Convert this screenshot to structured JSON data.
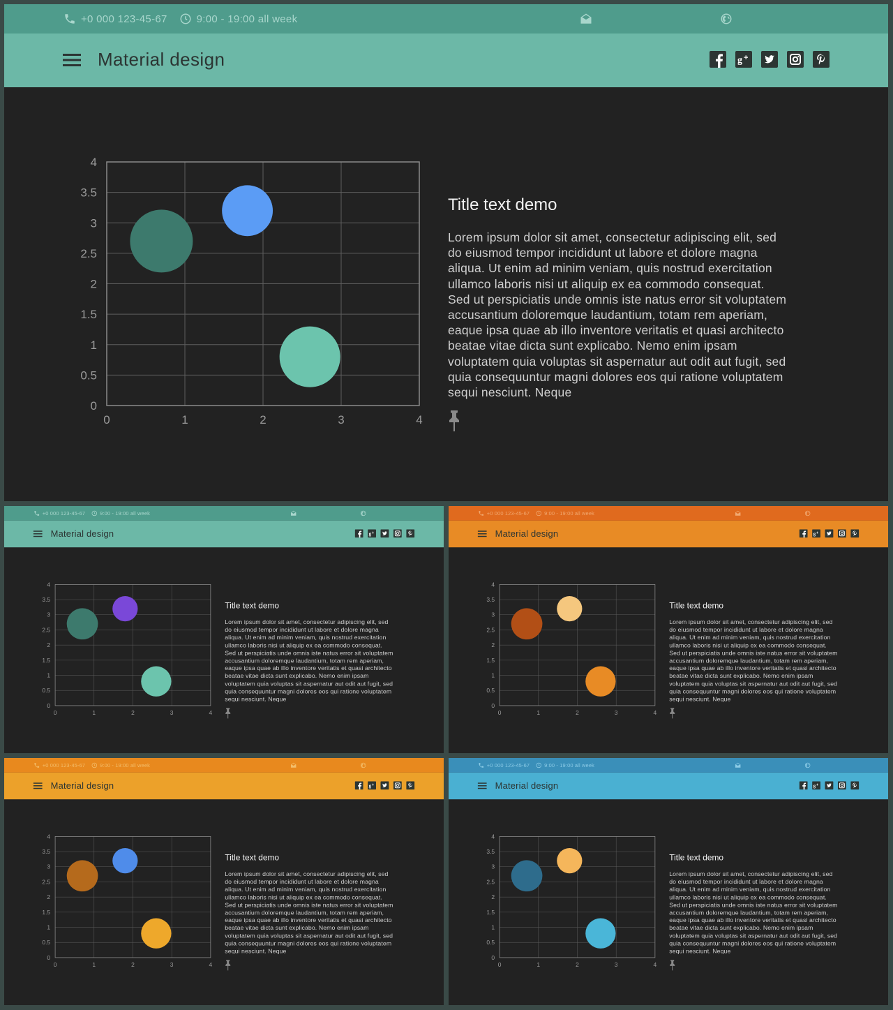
{
  "topbar": {
    "phone": "+0 000 123-45-67",
    "hours": "9:00 - 19:00 all week"
  },
  "header": {
    "title": "Material design"
  },
  "content": {
    "title": "Title text demo",
    "body": "Lorem ipsum dolor sit amet, consectetur adipiscing elit, sed do eiusmod tempor incididunt ut labore et dolore magna aliqua. Ut enim ad minim veniam, quis nostrud exercitation ullamco laboris nisi ut aliquip ex ea commodo consequat. Sed ut perspiciatis unde omnis iste natus error sit voluptatem accusantium doloremque laudantium, totam rem aperiam, eaque ipsa quae ab illo inventore veritatis et quasi architecto beatae vitae dicta sunt explicabo. Nemo enim ipsam voluptatem quia voluptas sit aspernatur aut odit aut fugit, sed quia consequuntur magni dolores eos qui ratione voluptatem sequi nesciunt. Neque"
  },
  "social_icons": [
    "facebook-icon",
    "google-plus-icon",
    "twitter-icon",
    "instagram-icon",
    "pinterest-icon"
  ],
  "chart_data": {
    "type": "scatter",
    "bubble": true,
    "xlim": [
      0,
      4
    ],
    "ylim": [
      0,
      4
    ],
    "xticks": [
      "0",
      "1",
      "2",
      "3",
      "4"
    ],
    "yticks": [
      "0",
      "0.5",
      "1",
      "1.5",
      "2",
      "2.5",
      "3",
      "3.5",
      "4"
    ],
    "grid": true,
    "points": [
      {
        "x": 0.7,
        "y": 2.7,
        "size": 1.0
      },
      {
        "x": 1.8,
        "y": 3.2,
        "size": 0.63
      },
      {
        "x": 2.6,
        "y": 0.8,
        "size": 0.9
      }
    ]
  },
  "themes": [
    {
      "name": "teal",
      "topbar": "#4f9c8c",
      "header": "#6cb8a7",
      "topbar_text": "#a8d6cc",
      "bubbles": [
        "#3d7a6d",
        "#5b9cf5",
        "#6cc4ad"
      ]
    },
    {
      "name": "teal-purple",
      "topbar": "#4f9c8c",
      "header": "#6cb8a7",
      "topbar_text": "#a8d6cc",
      "bubbles": [
        "#3d7a6d",
        "#7a48d8",
        "#6cc4ad"
      ]
    },
    {
      "name": "orange",
      "topbar": "#e06a1e",
      "header": "#e88b25",
      "topbar_text": "#f1a870",
      "bubbles": [
        "#b24f16",
        "#f5c77e",
        "#e88b25"
      ]
    },
    {
      "name": "amber",
      "topbar": "#e8891e",
      "header": "#eca12a",
      "topbar_text": "#f3bd6a",
      "bubbles": [
        "#b56a1c",
        "#4f8cea",
        "#eea82b"
      ]
    },
    {
      "name": "blue",
      "topbar": "#3a8fb9",
      "header": "#4ab0d2",
      "topbar_text": "#8bcbe6",
      "bubbles": [
        "#2e6c8c",
        "#f5b65b",
        "#4ab6d8"
      ]
    }
  ]
}
